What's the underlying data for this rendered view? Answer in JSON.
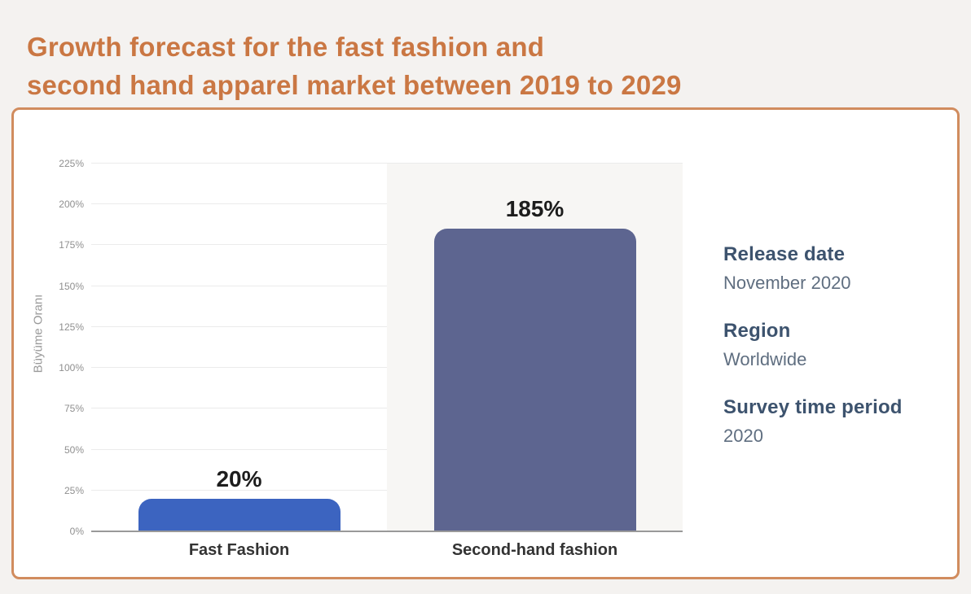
{
  "page": {
    "title_line1": "Growth forecast for the fast fashion and",
    "title_line2": "second hand apparel market between 2019 to 2029"
  },
  "colors": {
    "page_bg": "#f4f2f0",
    "title": "#ca7743",
    "panel_border": "#d18c5e",
    "panel_bg": "#ffffff",
    "gridline": "#ebebeb",
    "axis_line": "#999999",
    "tick_label": "#8f8f8f",
    "value_label": "#1d1d1d",
    "category_label": "#333333",
    "highlight_band": "#f7f6f4",
    "info_label": "#3d536e",
    "info_value": "#5f6e80"
  },
  "chart_data": {
    "type": "bar",
    "title": "Growth forecast for the fast fashion and second hand apparel market between 2019 to 2029",
    "categories": [
      "Fast Fashion",
      "Second-hand fashion"
    ],
    "values": [
      20,
      185
    ],
    "value_labels": [
      "20%",
      "185%"
    ],
    "bar_colors": [
      "#3c64c0",
      "#5d6590"
    ],
    "highlighted_category_index": 1,
    "xlabel": "",
    "ylabel": "Büyüme Oranı",
    "ylim": [
      0,
      225
    ],
    "ytick_step": 25,
    "ytick_suffix": "%",
    "grid": true,
    "legend": false
  },
  "info": {
    "items": [
      {
        "label": "Release date",
        "value": "November 2020"
      },
      {
        "label": "Region",
        "value": "Worldwide"
      },
      {
        "label": "Survey time period",
        "value": "2020"
      }
    ]
  }
}
